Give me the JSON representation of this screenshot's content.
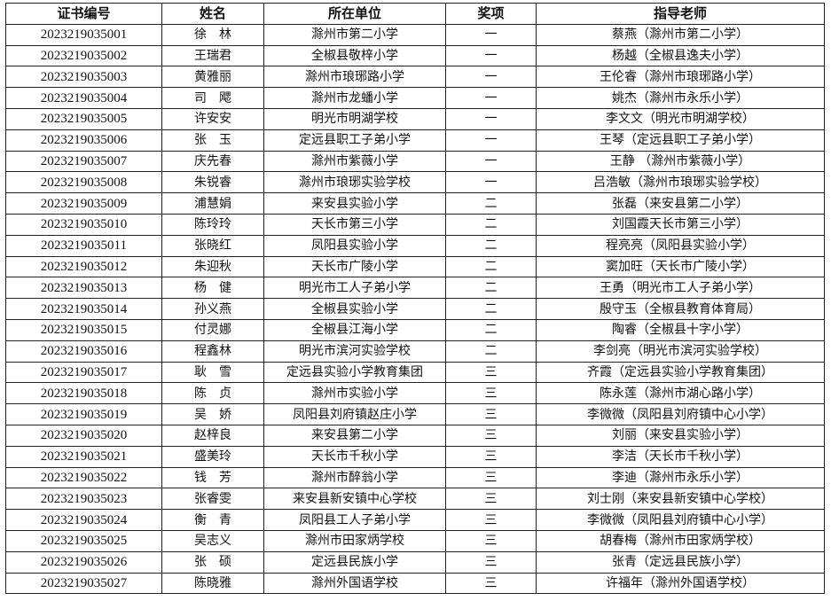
{
  "headers": [
    "证书编号",
    "姓名",
    "所在单位",
    "奖项",
    "指导老师"
  ],
  "rows": [
    [
      "2023219035001",
      "徐　林",
      "滁州市第二小学",
      "一",
      "蔡燕（滁州市第二小学）"
    ],
    [
      "2023219035002",
      "王瑞君",
      "全椒县敬梓小学",
      "一",
      "杨越（全椒县逸夫小学）"
    ],
    [
      "2023219035003",
      "黄雅丽",
      "滁州市琅琊路小学",
      "一",
      "王伦睿（滁州市琅琊路小学）"
    ],
    [
      "2023219035004",
      "司　飔",
      "滁州市龙蟠小学",
      "一",
      "姚杰（滁州市永乐小学）"
    ],
    [
      "2023219035005",
      "许安安",
      "明光市明湖学校",
      "一",
      "李文文（明光市明湖学校）"
    ],
    [
      "2023219035006",
      "张　玉",
      "定远县职工子弟小学",
      "一",
      "王琴（定远县职工子弟小学）"
    ],
    [
      "2023219035007",
      "庆先春",
      "滁州市紫薇小学",
      "一",
      "王静 （滁州市紫薇小学）"
    ],
    [
      "2023219035008",
      "朱锐睿",
      "滁州市琅琊实验学校",
      "一",
      "吕浩敏（滁州市琅琊实验学校）"
    ],
    [
      "2023219035009",
      "浦慧娟",
      "来安县实验小学",
      "二",
      "张磊（来安县第二小学）"
    ],
    [
      "2023219035010",
      "陈玲玲",
      "天长市第三小学",
      "二",
      "刘国霞天长市第三小学）"
    ],
    [
      "2023219035011",
      "张晓红",
      "凤阳县实验小学",
      "二",
      "程亮亮（凤阳县实验小学）"
    ],
    [
      "2023219035012",
      "朱迎秋",
      "天长市广陵小学",
      "二",
      "窦加旺（天长市广陵小学）"
    ],
    [
      "2023219035013",
      "杨　健",
      "明光市工人子弟小学",
      "二",
      "王勇（明光市工人子弟小学）"
    ],
    [
      "2023219035014",
      "孙义燕",
      "全椒县实验小学",
      "二",
      "殷守玉（全椒县教育体育局）"
    ],
    [
      "2023219035015",
      "付灵娜",
      "全椒县江海小学",
      "二",
      "陶睿（全椒县十字小学）"
    ],
    [
      "2023219035016",
      "程鑫林",
      "明光市滨河实验学校",
      "二",
      "李剑亮（明光市滨河实验学校）"
    ],
    [
      "2023219035017",
      "耿　雪",
      "定远县实验小学教育集团",
      "三",
      "齐霞（定远县实验小学教育集团）"
    ],
    [
      "2023219035018",
      "陈　贞",
      "滁州市实验小学",
      "三",
      "陈永莲（滁州市湖心路小学）"
    ],
    [
      "2023219035019",
      "吴　娇",
      "凤阳县刘府镇赵庄小学",
      "三",
      "李微微（凤阳县刘府镇中心小学）"
    ],
    [
      "2023219035020",
      "赵梓良",
      "来安县第二小学",
      "三",
      "刘丽（来安县实验小学）"
    ],
    [
      "2023219035021",
      "盛美玲",
      "天长市千秋小学",
      "三",
      "李洁（天长市千秋小学）"
    ],
    [
      "2023219035022",
      "钱　芳",
      "滁州市醉翁小学",
      "三",
      "李迪（滁州市永乐小学）"
    ],
    [
      "2023219035023",
      "张睿雯",
      "来安县新安镇中心学校",
      "三",
      "刘士刚（来安县新安镇中心学校）"
    ],
    [
      "2023219035024",
      "衡　青",
      "凤阳县工人子弟小学",
      "三",
      "李微微（凤阳县刘府镇中心小学）"
    ],
    [
      "2023219035025",
      "吴志义",
      "滁州市田家炳学校",
      "三",
      "胡春梅（滁州市田家炳学校）"
    ],
    [
      "2023219035026",
      "张　硕",
      "定远县民族小学",
      "三",
      "张青（定远县民族小学）"
    ],
    [
      "2023219035027",
      "陈晓雅",
      "滁州外国语学校",
      "三",
      "许福年（滁州外国语学校）"
    ]
  ]
}
